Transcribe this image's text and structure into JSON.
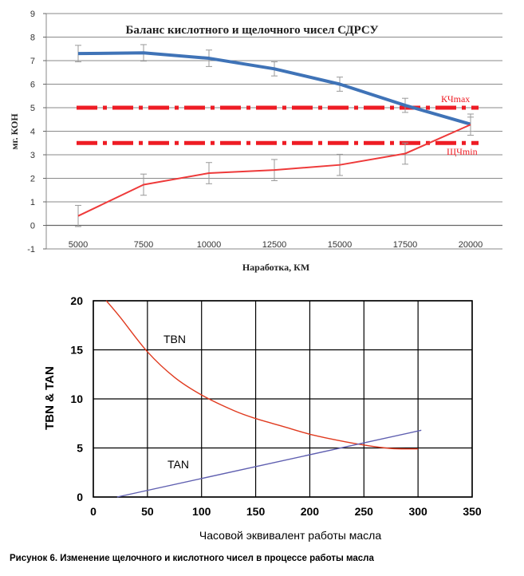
{
  "chart_data": [
    {
      "type": "line",
      "title": "Баланс кислотного и щелочного чисел СДРСУ",
      "xlabel": "Наработка, КМ",
      "ylabel": "мг. КОН",
      "categories": [
        "5000",
        "7500",
        "10000",
        "12500",
        "15000",
        "17500",
        "20000"
      ],
      "x": [
        5000,
        7500,
        10000,
        12500,
        15000,
        17500,
        20000
      ],
      "ylim": [
        -1,
        9
      ],
      "yticks": [
        -1,
        0,
        1,
        2,
        3,
        4,
        5,
        6,
        7,
        8,
        9
      ],
      "grid": true,
      "series": [
        {
          "color": "#3f73b7",
          "values": [
            7.3,
            7.33,
            7.1,
            6.65,
            6.0,
            5.1,
            4.3
          ],
          "errors": [
            0.35,
            0.35,
            0.35,
            0.3,
            0.3,
            0.3,
            0.3
          ]
        },
        {
          "color": "#ee3a3a",
          "values": [
            0.4,
            1.73,
            2.22,
            2.35,
            2.57,
            3.05,
            4.28
          ],
          "errors": [
            0.45,
            0.45,
            0.45,
            0.45,
            0.45,
            0.45,
            0.45
          ]
        }
      ],
      "reference_lines": [
        {
          "label": "КЧmax",
          "value": 5.0,
          "color": "#ee1c24"
        },
        {
          "label": "ЩЧmin",
          "value": 3.5,
          "color": "#ee1c24"
        }
      ]
    },
    {
      "type": "line",
      "xlabel": "Часовой эквивалент работы масла",
      "ylabel": "TBN & TAN",
      "xlim": [
        0,
        350
      ],
      "ylim": [
        0,
        20
      ],
      "xticks": [
        0,
        50,
        100,
        150,
        200,
        250,
        300,
        350
      ],
      "yticks": [
        0,
        5,
        10,
        15,
        20
      ],
      "grid": true,
      "series": [
        {
          "name": "TBN",
          "color": "#e03a1f",
          "x": [
            12,
            25,
            50,
            75,
            100,
            130,
            150,
            175,
            200,
            225,
            250,
            275,
            300
          ],
          "values": [
            20,
            18.3,
            14.8,
            12.2,
            10.4,
            8.8,
            8.0,
            7.2,
            6.4,
            5.8,
            5.3,
            4.95,
            4.9
          ]
        },
        {
          "name": "TAN",
          "color": "#5f5fb0",
          "x": [
            22,
            303
          ],
          "values": [
            0,
            6.8
          ]
        }
      ]
    }
  ],
  "caption": "Рисунок 6.   Изменение щелочного и кислотного чисел в процессе работы масла"
}
